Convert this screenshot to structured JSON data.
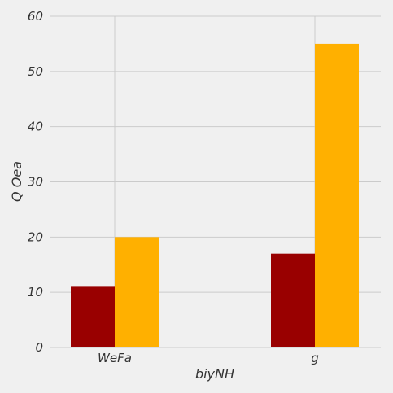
{
  "chart_data": {
    "type": "bar",
    "categories": [
      "WeFa",
      "g"
    ],
    "series": [
      {
        "color": "#990000",
        "values": [
          11,
          17
        ]
      },
      {
        "color": "#ffb000",
        "values": [
          20,
          55
        ]
      }
    ],
    "xlabel": "biyNH",
    "ylabel": "Q Oea",
    "ylim": [
      0,
      60
    ],
    "yticks": [
      0,
      10,
      20,
      30,
      40,
      50,
      60
    ],
    "grid": true,
    "legend": "none",
    "background": "#f0f0f0"
  }
}
